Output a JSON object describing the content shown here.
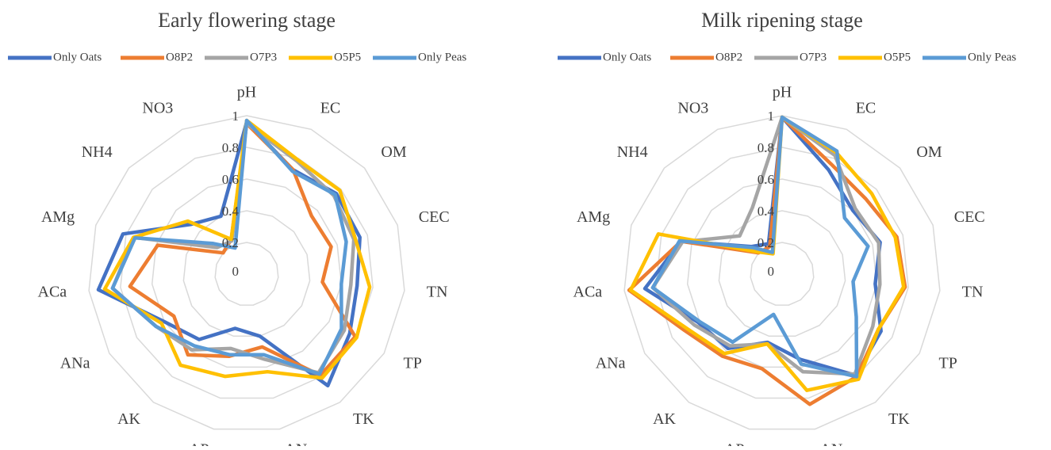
{
  "chart_data": [
    {
      "type": "radar",
      "title": "Early flowering stage",
      "axes": [
        "pH",
        "EC",
        "OM",
        "CEC",
        "TN",
        "TP",
        "TK",
        "AN",
        "AP",
        "AK",
        "ANa",
        "ACa",
        "AMg",
        "NH4",
        "NO3"
      ],
      "tick_values": [
        0,
        0.2,
        0.4,
        0.6,
        0.8,
        1
      ],
      "tick_labels": [
        "0",
        "0.2",
        "0.4",
        "0.6",
        "0.8",
        "1"
      ],
      "range": [
        0,
        1
      ],
      "legend_position": "top",
      "series": [
        {
          "name": "Only Oats",
          "color": "#4472C4",
          "values": [
            0.96,
            0.72,
            0.76,
            0.75,
            0.7,
            0.75,
            0.87,
            0.4,
            0.35,
            0.51,
            0.6,
            0.94,
            0.82,
            0.47,
            0.4
          ]
        },
        {
          "name": "O8P2",
          "color": "#ED7D31",
          "values": [
            0.95,
            0.72,
            0.55,
            0.56,
            0.48,
            0.79,
            0.79,
            0.47,
            0.53,
            0.63,
            0.53,
            0.74,
            0.59,
            0.2,
            0.24
          ]
        },
        {
          "name": "O7P3",
          "color": "#A5A5A5",
          "values": [
            0.95,
            0.78,
            0.74,
            0.71,
            0.66,
            0.71,
            0.77,
            0.55,
            0.48,
            0.59,
            0.66,
            0.85,
            0.75,
            0.25,
            0.23
          ]
        },
        {
          "name": "O5P5",
          "color": "#FFC000",
          "values": [
            0.97,
            0.79,
            0.79,
            0.72,
            0.78,
            0.8,
            0.81,
            0.63,
            0.66,
            0.71,
            0.62,
            0.9,
            0.75,
            0.5,
            0.24
          ]
        },
        {
          "name": "Only Peas",
          "color": "#5B9BD5",
          "values": [
            0.97,
            0.71,
            0.75,
            0.66,
            0.6,
            0.69,
            0.78,
            0.52,
            0.52,
            0.56,
            0.66,
            0.85,
            0.74,
            0.29,
            0.18
          ]
        }
      ]
    },
    {
      "type": "radar",
      "title": "Milk ripening stage",
      "axes": [
        "pH",
        "EC",
        "OM",
        "CEC",
        "TN",
        "TP",
        "TK",
        "AN",
        "AP",
        "AK",
        "ANa",
        "ACa",
        "AMg",
        "NH4",
        "NO3"
      ],
      "tick_values": [
        0,
        0.2,
        0.4,
        0.6,
        0.8,
        1
      ],
      "tick_labels": [
        "0",
        "0.2",
        "0.4",
        "0.6",
        "0.8",
        "1"
      ],
      "range": [
        0,
        1
      ],
      "legend_position": "top",
      "series": [
        {
          "name": "Only Oats",
          "color": "#4472C4",
          "values": [
            0.99,
            0.72,
            0.6,
            0.65,
            0.59,
            0.72,
            0.79,
            0.55,
            0.44,
            0.58,
            0.61,
            0.87,
            0.67,
            0.26,
            0.21
          ]
        },
        {
          "name": "O8P2",
          "color": "#ED7D31",
          "values": [
            0.99,
            0.76,
            0.71,
            0.76,
            0.78,
            0.7,
            0.8,
            0.84,
            0.61,
            0.64,
            0.71,
            0.97,
            0.67,
            0.2,
            0.19
          ]
        },
        {
          "name": "O7P3",
          "color": "#A5A5A5",
          "values": [
            0.99,
            0.82,
            0.62,
            0.64,
            0.62,
            0.66,
            0.78,
            0.63,
            0.45,
            0.56,
            0.64,
            0.82,
            0.66,
            0.36,
            0.46
          ]
        },
        {
          "name": "O5P5",
          "color": "#FFC000",
          "values": [
            0.99,
            0.84,
            0.76,
            0.75,
            0.77,
            0.7,
            0.82,
            0.75,
            0.45,
            0.62,
            0.69,
            0.96,
            0.82,
            0.21,
            0.14
          ]
        },
        {
          "name": "Only Peas",
          "color": "#5B9BD5",
          "values": [
            0.99,
            0.85,
            0.53,
            0.57,
            0.45,
            0.54,
            0.8,
            0.58,
            0.26,
            0.53,
            0.6,
            0.82,
            0.68,
            0.25,
            0.15
          ]
        }
      ]
    }
  ]
}
